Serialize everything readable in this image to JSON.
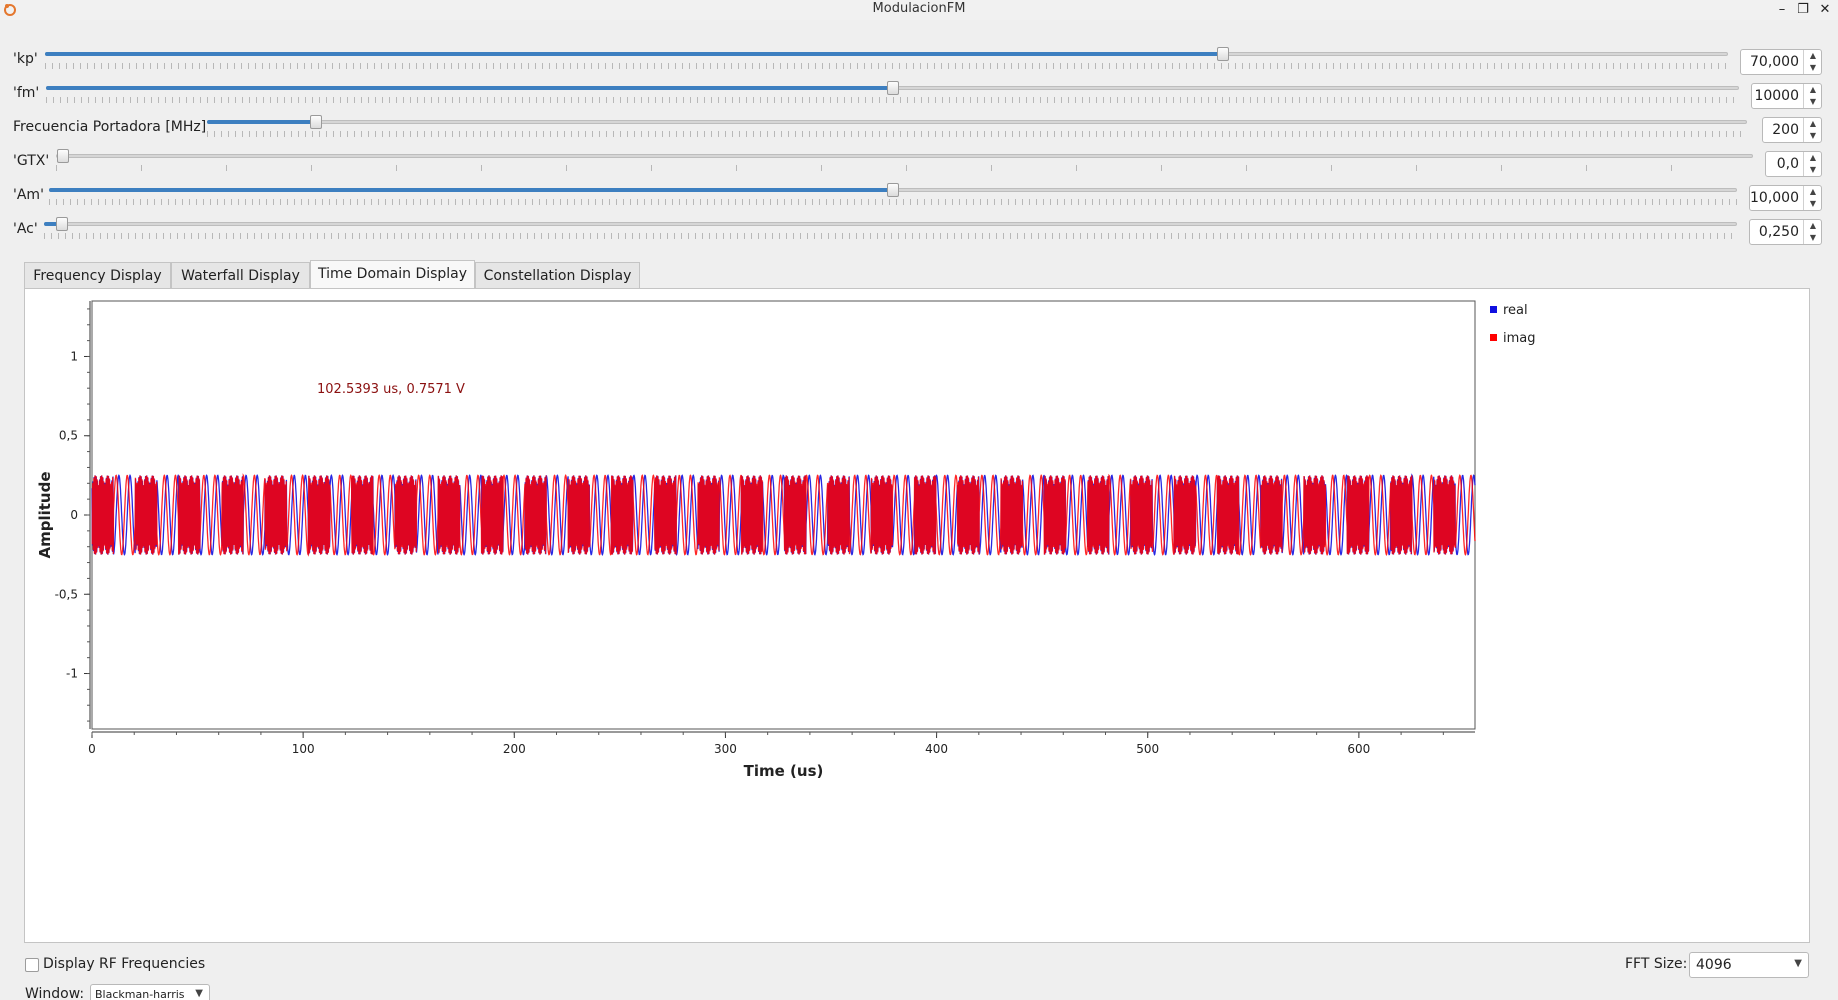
{
  "window": {
    "title": "ModulacionFM",
    "minimize_glyph": "–",
    "maximize_glyph": "❐",
    "close_glyph": "✕"
  },
  "sliders": [
    {
      "label": "'kp'",
      "value_text": "70,000",
      "level_fraction": 0.7
    },
    {
      "label": "'fm'",
      "value_text": "10000",
      "level_fraction": 0.5
    },
    {
      "label": "Frecuencia Portadora [MHz]",
      "value_text": "200",
      "level_fraction": 0.07
    },
    {
      "label": "'GTX'",
      "value_text": "0,0",
      "level_fraction": 0.0
    },
    {
      "label": "'Am'",
      "value_text": "10,000",
      "level_fraction": 0.5
    },
    {
      "label": "'Ac'",
      "value_text": "0,250",
      "level_fraction": 0.01
    }
  ],
  "tabs": [
    {
      "label": "Frequency Display",
      "active": false
    },
    {
      "label": "Waterfall Display",
      "active": false
    },
    {
      "label": "Time Domain Display",
      "active": true
    },
    {
      "label": "Constellation Display",
      "active": false
    }
  ],
  "chart_data": {
    "type": "line",
    "title": "",
    "xlabel": "Time (us)",
    "ylabel": "Amplitude",
    "xlim": [
      0,
      655
    ],
    "ylim": [
      -1.35,
      1.35
    ],
    "x_ticks": [
      "0",
      "100",
      "200",
      "300",
      "400",
      "500",
      "600"
    ],
    "y_ticks": [
      "1",
      "0,5",
      "0",
      "-0,5",
      "-1"
    ],
    "series": [
      {
        "name": "real",
        "color": "#1010e0",
        "amplitude": 0.25
      },
      {
        "name": "imag",
        "color": "#ff0000",
        "amplitude": 0.25
      }
    ],
    "annotation": {
      "text": "102.5393 us, 0.7571 V",
      "x": 102.5393,
      "y": 0.7571,
      "color": "#8b1010"
    },
    "legend_position": "top-right",
    "grid": false
  },
  "controls": {
    "display_rf_label": "Display RF Frequencies",
    "display_rf_checked": false,
    "fft_size_label": "FFT Size:",
    "fft_size_value": "4096",
    "window_label": "Window:",
    "window_value": "Blackman-harris"
  },
  "icons": {
    "app": "gnuradio-logo-icon",
    "spin_up": "▲",
    "spin_down": "▼",
    "combo_arrow": "▼"
  }
}
